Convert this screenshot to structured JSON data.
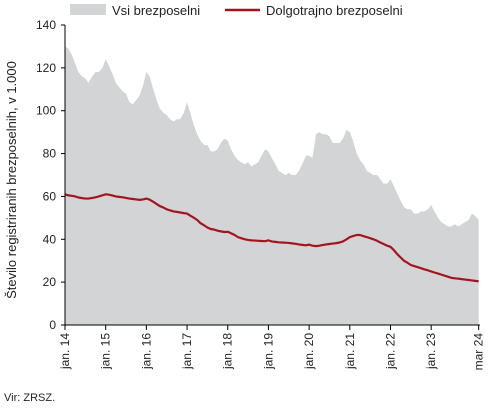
{
  "chart_data": {
    "type": "area",
    "title": "",
    "xlabel": "",
    "ylabel": "Število registriranih brezposelnih, v 1.000",
    "ylim": [
      0,
      140
    ],
    "yticks": [
      0,
      20,
      40,
      60,
      80,
      100,
      120,
      140
    ],
    "xlim": [
      2014.0,
      2024.2
    ],
    "xticks": [
      {
        "label": "jan. 14",
        "x": 2014.0
      },
      {
        "label": "jan. 15",
        "x": 2015.0
      },
      {
        "label": "jan. 16",
        "x": 2016.0
      },
      {
        "label": "jan. 17",
        "x": 2017.0
      },
      {
        "label": "jan. 18",
        "x": 2018.0
      },
      {
        "label": "jan. 19",
        "x": 2019.0
      },
      {
        "label": "jan. 20",
        "x": 2020.0
      },
      {
        "label": "jan. 21",
        "x": 2021.0
      },
      {
        "label": "jan. 22",
        "x": 2022.0
      },
      {
        "label": "jan. 23",
        "x": 2023.0
      },
      {
        "label": "mar 24",
        "x": 2024.167
      }
    ],
    "grid": false,
    "legend": "top",
    "series": [
      {
        "name": "Vsi brezposelni",
        "kind": "area",
        "color": "#d3d4d6",
        "x": [
          2014.0,
          2014.08,
          2014.17,
          2014.25,
          2014.33,
          2014.42,
          2014.5,
          2014.58,
          2014.67,
          2014.75,
          2014.83,
          2014.92,
          2015.0,
          2015.08,
          2015.17,
          2015.25,
          2015.33,
          2015.42,
          2015.5,
          2015.58,
          2015.67,
          2015.75,
          2015.83,
          2015.92,
          2016.0,
          2016.08,
          2016.17,
          2016.25,
          2016.33,
          2016.42,
          2016.5,
          2016.58,
          2016.67,
          2016.75,
          2016.83,
          2016.92,
          2017.0,
          2017.08,
          2017.17,
          2017.25,
          2017.33,
          2017.42,
          2017.5,
          2017.58,
          2017.67,
          2017.75,
          2017.83,
          2017.92,
          2018.0,
          2018.08,
          2018.17,
          2018.25,
          2018.33,
          2018.42,
          2018.5,
          2018.58,
          2018.67,
          2018.75,
          2018.83,
          2018.92,
          2019.0,
          2019.08,
          2019.17,
          2019.25,
          2019.33,
          2019.42,
          2019.5,
          2019.58,
          2019.67,
          2019.75,
          2019.83,
          2019.92,
          2020.0,
          2020.08,
          2020.17,
          2020.25,
          2020.33,
          2020.42,
          2020.5,
          2020.58,
          2020.67,
          2020.75,
          2020.83,
          2020.92,
          2021.0,
          2021.08,
          2021.17,
          2021.25,
          2021.33,
          2021.42,
          2021.5,
          2021.58,
          2021.67,
          2021.75,
          2021.83,
          2021.92,
          2022.0,
          2022.08,
          2022.17,
          2022.25,
          2022.33,
          2022.42,
          2022.5,
          2022.58,
          2022.67,
          2022.75,
          2022.83,
          2022.92,
          2023.0,
          2023.08,
          2023.17,
          2023.25,
          2023.33,
          2023.42,
          2023.5,
          2023.58,
          2023.67,
          2023.75,
          2023.83,
          2023.92,
          2024.0,
          2024.08,
          2024.167
        ],
        "values": [
          130,
          129,
          126,
          122,
          118,
          116,
          115,
          113,
          116,
          118,
          118,
          120,
          124,
          121,
          117,
          113,
          111,
          109,
          108,
          104,
          103,
          105,
          107,
          112,
          118,
          116,
          110,
          105,
          101,
          99,
          98,
          96,
          95,
          96,
          96,
          99,
          104,
          99,
          93,
          89,
          86,
          84,
          84,
          81,
          81,
          82,
          85,
          87,
          86,
          82,
          79,
          77,
          76,
          75,
          76,
          74,
          75,
          76,
          79,
          82,
          81,
          78,
          75,
          72,
          71,
          70,
          71,
          70,
          70,
          72,
          75,
          79,
          79,
          78,
          89,
          90,
          89,
          89,
          88,
          85,
          85,
          85,
          87,
          91,
          90,
          86,
          80,
          77,
          75,
          72,
          71,
          70,
          70,
          68,
          66,
          66,
          68,
          65,
          61,
          58,
          55,
          54,
          54,
          52,
          52,
          53,
          53,
          54,
          56,
          53,
          50,
          48,
          47,
          46,
          46,
          47,
          46,
          47,
          48,
          49,
          52,
          51,
          49
        ]
      },
      {
        "name": "Dolgotrajno brezposelni",
        "kind": "line",
        "color": "#a3141e",
        "x": [
          2014.0,
          2014.08,
          2014.17,
          2014.25,
          2014.33,
          2014.42,
          2014.5,
          2014.58,
          2014.67,
          2014.75,
          2014.83,
          2014.92,
          2015.0,
          2015.08,
          2015.17,
          2015.25,
          2015.33,
          2015.42,
          2015.5,
          2015.58,
          2015.67,
          2015.75,
          2015.83,
          2015.92,
          2016.0,
          2016.08,
          2016.17,
          2016.25,
          2016.33,
          2016.42,
          2016.5,
          2016.58,
          2016.67,
          2016.75,
          2016.83,
          2016.92,
          2017.0,
          2017.08,
          2017.17,
          2017.25,
          2017.33,
          2017.42,
          2017.5,
          2017.58,
          2017.67,
          2017.75,
          2017.83,
          2017.92,
          2018.0,
          2018.08,
          2018.17,
          2018.25,
          2018.33,
          2018.42,
          2018.5,
          2018.58,
          2018.67,
          2018.75,
          2018.83,
          2018.92,
          2019.0,
          2019.08,
          2019.17,
          2019.25,
          2019.33,
          2019.42,
          2019.5,
          2019.58,
          2019.67,
          2019.75,
          2019.83,
          2019.92,
          2020.0,
          2020.08,
          2020.17,
          2020.25,
          2020.33,
          2020.42,
          2020.5,
          2020.58,
          2020.67,
          2020.75,
          2020.83,
          2020.92,
          2021.0,
          2021.08,
          2021.17,
          2021.25,
          2021.33,
          2021.42,
          2021.5,
          2021.58,
          2021.67,
          2021.75,
          2021.83,
          2021.92,
          2022.0,
          2022.08,
          2022.17,
          2022.25,
          2022.33,
          2022.42,
          2022.5,
          2022.58,
          2022.67,
          2022.75,
          2022.83,
          2022.92,
          2023.0,
          2023.08,
          2023.17,
          2023.25,
          2023.33,
          2023.42,
          2023.5,
          2023.58,
          2023.67,
          2023.75,
          2023.83,
          2023.92,
          2024.0,
          2024.08,
          2024.167
        ],
        "values": [
          61,
          60.5,
          60.3,
          60,
          59.5,
          59.2,
          59,
          59,
          59.3,
          59.6,
          60,
          60.5,
          61,
          60.8,
          60.4,
          60,
          59.8,
          59.6,
          59.3,
          59,
          58.8,
          58.6,
          58.4,
          58.6,
          59,
          58.5,
          57.5,
          56.5,
          55.5,
          54.8,
          54,
          53.5,
          53,
          52.8,
          52.5,
          52.2,
          52,
          51,
          50,
          49,
          47.5,
          46.5,
          45.5,
          44.8,
          44.5,
          44,
          43.7,
          43.4,
          43.5,
          42.8,
          42,
          41,
          40.5,
          40,
          39.7,
          39.5,
          39.4,
          39.3,
          39.2,
          39.1,
          39.5,
          39,
          38.8,
          38.6,
          38.5,
          38.4,
          38.3,
          38.1,
          37.9,
          37.6,
          37.4,
          37.2,
          37.5,
          37,
          36.8,
          37,
          37.3,
          37.6,
          37.8,
          38,
          38.2,
          38.5,
          39,
          40,
          41,
          41.5,
          42,
          42,
          41.5,
          41,
          40.5,
          40,
          39.3,
          38.5,
          37.8,
          37,
          36.5,
          35,
          33,
          31.5,
          30,
          29,
          28,
          27.5,
          27,
          26.5,
          26,
          25.5,
          25,
          24.5,
          24,
          23.5,
          23,
          22.5,
          22,
          21.8,
          21.6,
          21.4,
          21.2,
          21,
          20.8,
          20.6,
          20.4
        ]
      }
    ]
  },
  "source_note": "Vir: ZRSZ."
}
